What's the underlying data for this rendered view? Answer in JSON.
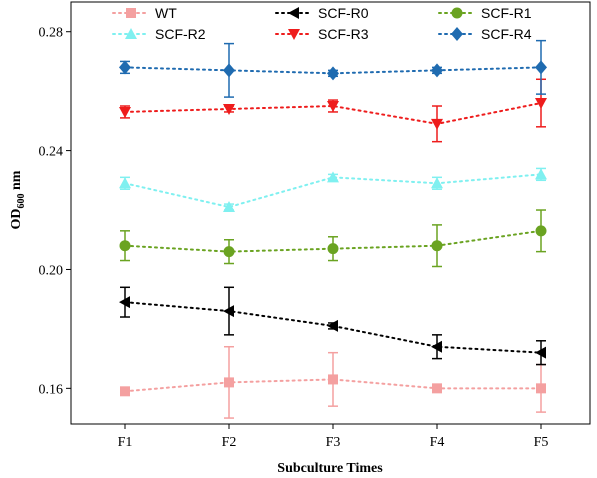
{
  "chart_data": {
    "type": "line",
    "xlabel": "Subculture Times",
    "ylabel_main": "OD",
    "ylabel_sub": "600",
    "ylabel_unit": " nm",
    "categories": [
      "F1",
      "F2",
      "F3",
      "F4",
      "F5"
    ],
    "ylim": [
      0.148,
      0.29
    ],
    "yticks": [
      "0.16",
      "0.20",
      "0.24",
      "0.28"
    ],
    "series": [
      {
        "name": "WT",
        "color": "#f4a0a0",
        "marker": "square",
        "values": [
          0.159,
          0.162,
          0.163,
          0.16,
          0.16
        ],
        "errors": [
          0.001,
          0.012,
          0.009,
          0.001,
          0.008
        ]
      },
      {
        "name": "SCF-R0",
        "color": "#000000",
        "marker": "triangle-left",
        "values": [
          0.189,
          0.186,
          0.181,
          0.174,
          0.172
        ],
        "errors": [
          0.005,
          0.008,
          0.001,
          0.004,
          0.004
        ]
      },
      {
        "name": "SCF-R1",
        "color": "#6aa321",
        "marker": "circle",
        "values": [
          0.208,
          0.206,
          0.207,
          0.208,
          0.213
        ],
        "errors": [
          0.005,
          0.004,
          0.004,
          0.007,
          0.007
        ]
      },
      {
        "name": "SCF-R2",
        "color": "#7ff0f0",
        "marker": "triangle-up",
        "values": [
          0.229,
          0.221,
          0.231,
          0.229,
          0.232
        ],
        "errors": [
          0.002,
          0.001,
          0.001,
          0.002,
          0.002
        ]
      },
      {
        "name": "SCF-R3",
        "color": "#ee1c1c",
        "marker": "triangle-down",
        "values": [
          0.253,
          0.254,
          0.255,
          0.249,
          0.256
        ],
        "errors": [
          0.002,
          0.001,
          0.002,
          0.006,
          0.008
        ]
      },
      {
        "name": "SCF-R4",
        "color": "#1f6bb0",
        "marker": "diamond",
        "values": [
          0.268,
          0.267,
          0.266,
          0.267,
          0.268
        ],
        "errors": [
          0.002,
          0.009,
          0.001,
          0.001,
          0.009
        ]
      }
    ],
    "legend_placement": "top",
    "grid": false
  }
}
